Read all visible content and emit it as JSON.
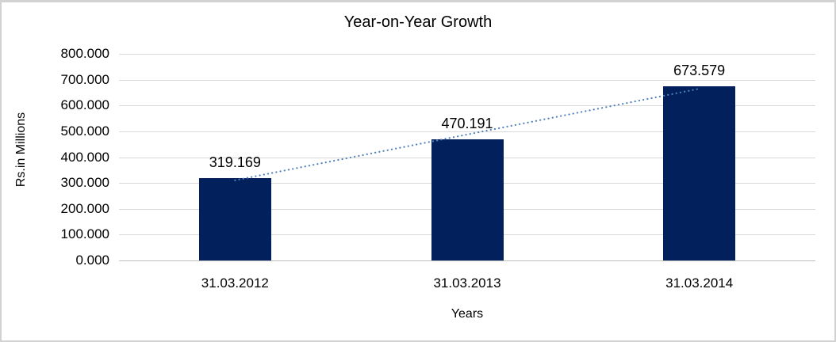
{
  "chart_data": {
    "type": "bar",
    "title": "Year-on-Year Growth",
    "categories": [
      "31.03.2012",
      "31.03.2013",
      "31.03.2014"
    ],
    "values": [
      319.169,
      470.191,
      673.579
    ],
    "value_labels": [
      "319.169",
      "470.191",
      "673.579"
    ],
    "xlabel": "Years",
    "ylabel": "Rs.in Millions",
    "ylim": [
      0,
      800
    ],
    "ytick_step": 100,
    "yticks": [
      "800.000",
      "700.000",
      "600.000",
      "500.000",
      "400.000",
      "300.000",
      "200.000",
      "100.000",
      "0.000"
    ],
    "grid": true,
    "legend_position": "none",
    "bar_color": "#02215C",
    "gridline_color": "#d9d9d9",
    "trendline": {
      "style": "dotted",
      "color": "#4F81BD"
    }
  }
}
